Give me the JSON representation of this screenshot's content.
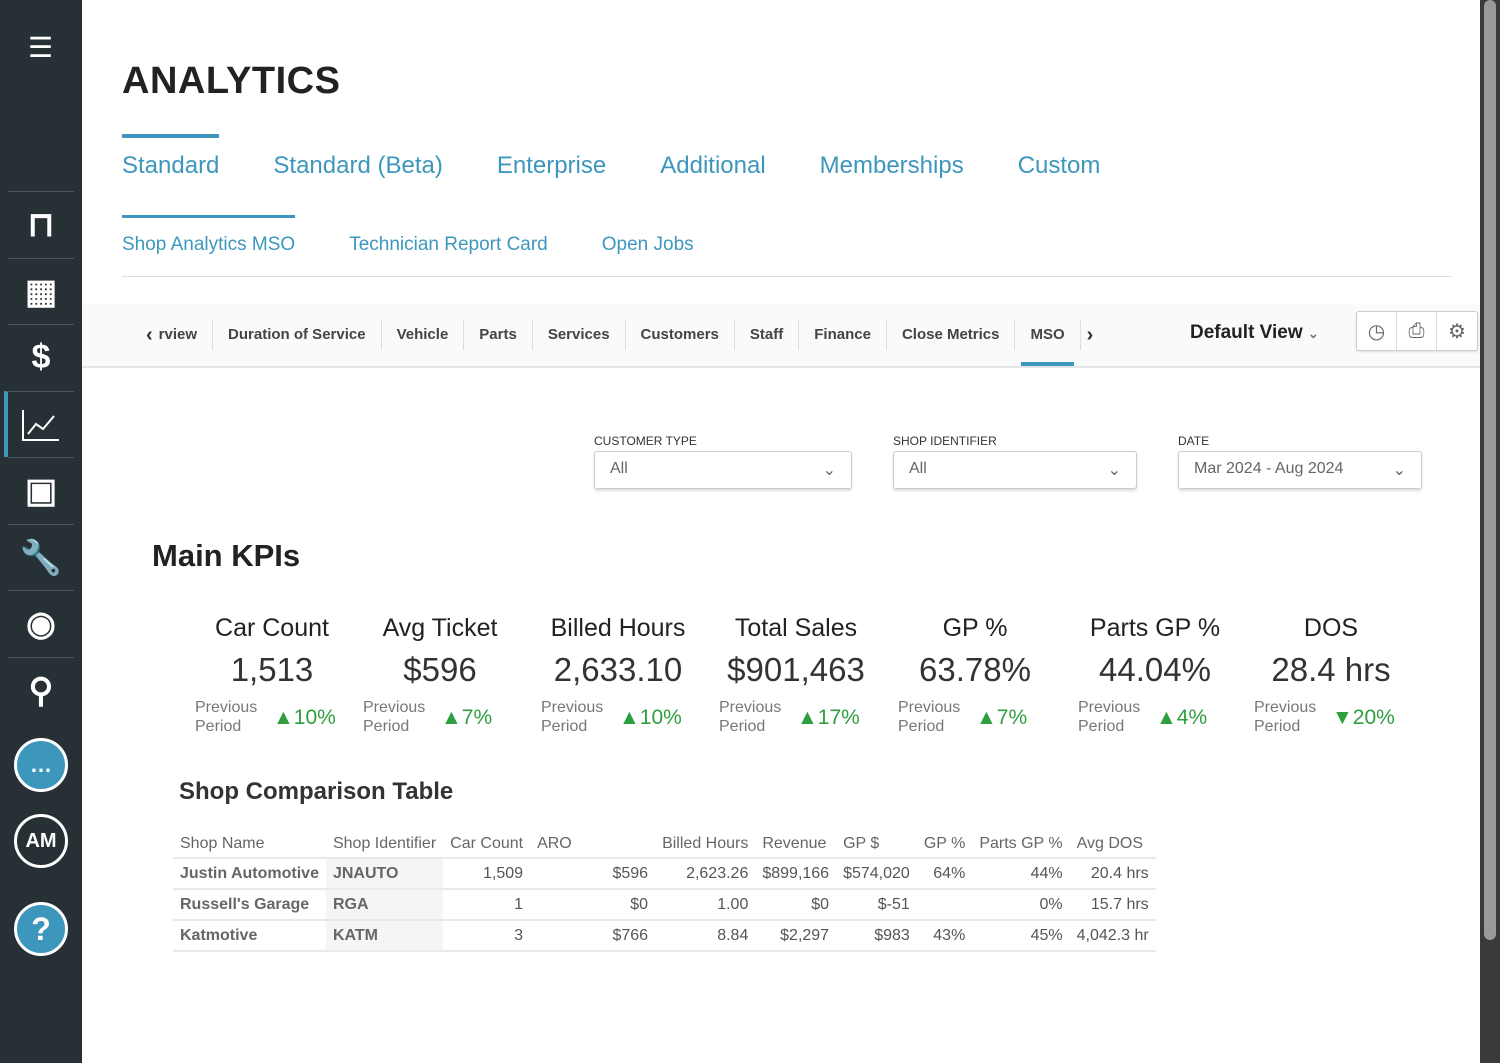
{
  "page": {
    "title": "ANALYTICS"
  },
  "tabs": [
    "Standard",
    "Standard (Beta)",
    "Enterprise",
    "Additional",
    "Memberships",
    "Custom"
  ],
  "subtabs": [
    "Shop Analytics MSO",
    "Technician Report Card",
    "Open Jobs"
  ],
  "reportTabs": [
    "rview",
    "Duration of Service",
    "Vehicle",
    "Parts",
    "Services",
    "Customers",
    "Staff",
    "Finance",
    "Close Metrics",
    "MSO"
  ],
  "defaultView": "Default View",
  "sidebar": {
    "am": "AM"
  },
  "filters": {
    "customerType": {
      "label": "CUSTOMER TYPE",
      "value": "All"
    },
    "shopIdentifier": {
      "label": "SHOP IDENTIFIER",
      "value": "All"
    },
    "date": {
      "label": "DATE",
      "value": "Mar 2024 - Aug 2024"
    }
  },
  "kpiTitle": "Main KPIs",
  "kpis": [
    {
      "name": "Car Count",
      "value": "1,513",
      "prev": "Previous Period",
      "change": "▲10%",
      "dir": "up"
    },
    {
      "name": "Avg Ticket",
      "value": "$596",
      "prev": "Previous Period",
      "change": "▲7%",
      "dir": "up"
    },
    {
      "name": "Billed Hours",
      "value": "2,633.10",
      "prev": "Previous Period",
      "change": "▲10%",
      "dir": "up"
    },
    {
      "name": "Total Sales",
      "value": "$901,463",
      "prev": "Previous Period",
      "change": "▲17%",
      "dir": "up"
    },
    {
      "name": "GP %",
      "value": "63.78%",
      "prev": "Previous Period",
      "change": "▲7%",
      "dir": "up"
    },
    {
      "name": "Parts GP %",
      "value": "44.04%",
      "prev": "Previous Period",
      "change": "▲4%",
      "dir": "up"
    },
    {
      "name": "DOS",
      "value": "28.4 hrs",
      "prev": "Previous Period",
      "change": "▼20%",
      "dir": "down"
    }
  ],
  "table": {
    "title": "Shop Comparison Table",
    "headers": [
      "Shop Name",
      "Shop Identifier",
      "Car Count",
      "ARO",
      "Billed Hours",
      "Revenue",
      "GP $",
      "GP %",
      "Parts GP %",
      "Avg DOS"
    ],
    "rows": [
      [
        "Justin Automotive",
        "JNAUTO",
        "1,509",
        "$596",
        "2,623.26",
        "$899,166",
        "$574,020",
        "64%",
        "44%",
        "20.4 hrs"
      ],
      [
        "Russell's Garage",
        "RGA",
        "1",
        "$0",
        "1.00",
        "$0",
        "$-51",
        "",
        "0%",
        "15.7 hrs"
      ],
      [
        "Katmotive",
        "KATM",
        "3",
        "$766",
        "8.84",
        "$2,297",
        "$983",
        "43%",
        "45%",
        "4,042.3 hr"
      ]
    ]
  },
  "colors": {
    "accent": "#3d97bd",
    "sidebar": "#263035",
    "up": "#2e9e3e"
  }
}
